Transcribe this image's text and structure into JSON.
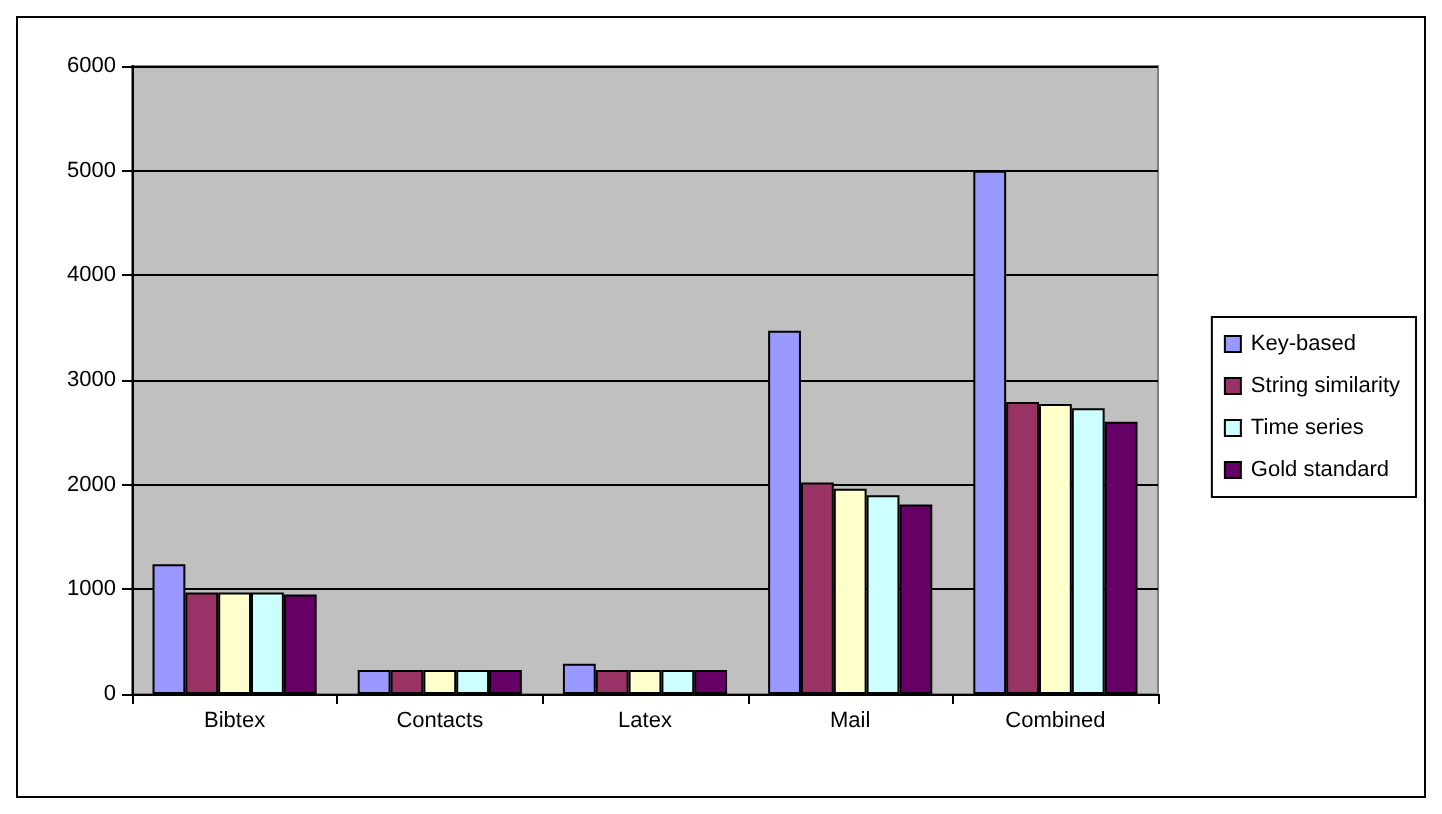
{
  "chart_data": {
    "type": "bar",
    "categories": [
      "Bibtex",
      "Contacts",
      "Latex",
      "Mail",
      "Combined"
    ],
    "series": [
      {
        "name": "Key-based",
        "color": "#9999ff",
        "values": [
          1240,
          230,
          290,
          3470,
          5000
        ]
      },
      {
        "name": "String similarity",
        "color": "#993366",
        "values": [
          970,
          230,
          230,
          2020,
          2790
        ]
      },
      {
        "color": "#ffffcc",
        "values": [
          970,
          230,
          230,
          1960,
          2770
        ]
      },
      {
        "name": "Time series",
        "color": "#ccffff",
        "values": [
          970,
          230,
          230,
          1900,
          2730
        ]
      },
      {
        "name": "Gold standard",
        "color": "#660066",
        "values": [
          950,
          230,
          230,
          1810,
          2600
        ]
      }
    ],
    "ylim": [
      0,
      6000
    ],
    "yticks": [
      0,
      1000,
      2000,
      3000,
      4000,
      5000,
      6000
    ],
    "grid": "y",
    "legend": "right"
  }
}
